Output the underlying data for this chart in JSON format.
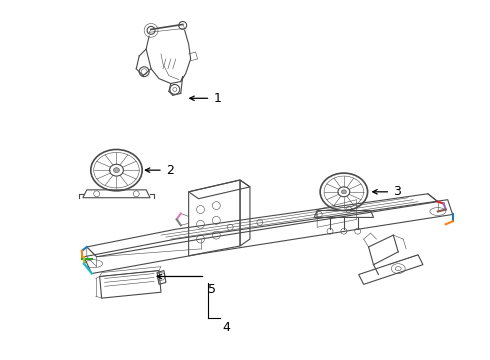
{
  "bg_color": "#ffffff",
  "line_color": "#4a4a4a",
  "lw_main": 0.8,
  "lw_thin": 0.4,
  "lw_thick": 1.2,
  "fig_width": 4.9,
  "fig_height": 3.6,
  "dpi": 100,
  "callout_color": "#000000",
  "part1_label": "1",
  "part2_label": "2",
  "part3_label": "3",
  "part4_label": "4",
  "part5_label": "5"
}
